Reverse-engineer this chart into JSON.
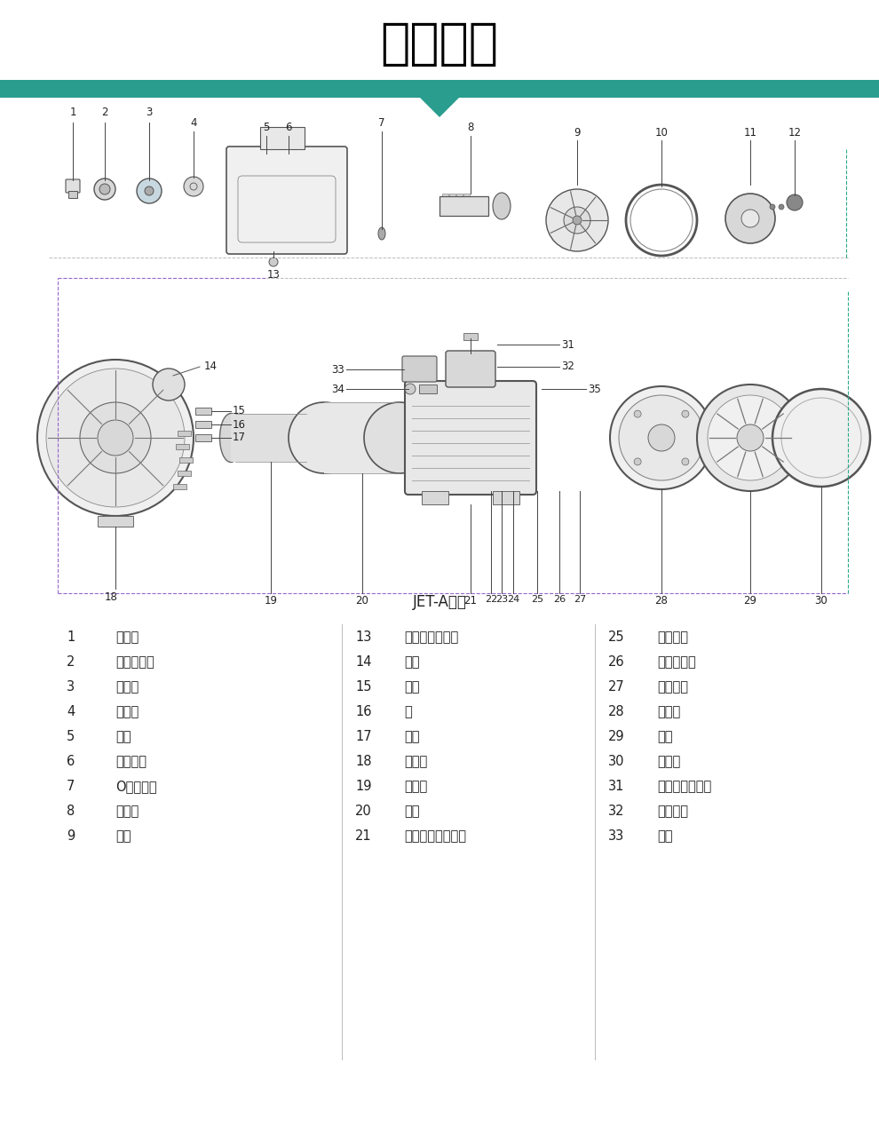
{
  "title": "结构简图",
  "subtitle": "JET-A系列",
  "title_color": "#000000",
  "header_bar_color": "#2a9d8f",
  "bg_color": "#ffffff",
  "parts_col1": [
    [
      "1",
      "防尘盖"
    ],
    [
      "2",
      "六角头螺栓"
    ],
    [
      "3",
      "进水管"
    ],
    [
      "4",
      "进水阀"
    ],
    [
      "5",
      "泵体"
    ],
    [
      "6",
      "放气旋塞"
    ],
    [
      "7",
      "O形密封圈"
    ],
    [
      "8",
      "噴射器"
    ],
    [
      "9",
      "叶片"
    ]
  ],
  "parts_col2": [
    [
      "13",
      "开槽圆柱头螺钉"
    ],
    [
      "14",
      "提手"
    ],
    [
      "15",
      "支架"
    ],
    [
      "16",
      "销"
    ],
    [
      "17",
      "销轴"
    ],
    [
      "18",
      "联接件"
    ],
    [
      "19",
      "挡水圈"
    ],
    [
      "20",
      "转子"
    ],
    [
      "21",
      "有槽沉头子体芯管"
    ]
  ],
  "parts_col3": [
    [
      "25",
      "电缆护套"
    ],
    [
      "26",
      "深沟球轴承"
    ],
    [
      "27",
      "波形弹簧"
    ],
    [
      "28",
      "后端盖"
    ],
    [
      "29",
      "风扇"
    ],
    [
      "30",
      "风扇罩"
    ],
    [
      "31",
      "十字槽盘头螺钉"
    ],
    [
      "32",
      "接线盒盖"
    ],
    [
      "33",
      "电室"
    ]
  ]
}
